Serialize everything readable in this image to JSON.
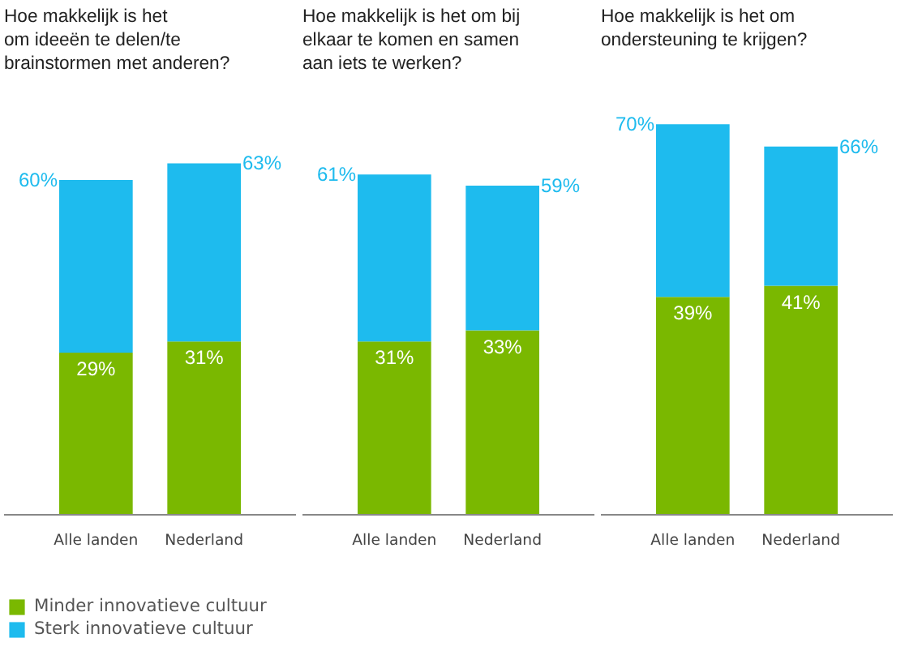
{
  "chart_data": [
    {
      "type": "bar",
      "stacked": true,
      "title": "Hoe makkelijk is het\nom ideeën te delen/te\nbrainstormen met anderen?",
      "categories": [
        "Alle landen",
        "Nederland"
      ],
      "legend": "bottom",
      "totals": [
        "60%",
        "63%"
      ],
      "series": [
        {
          "name": "Minder innovatieve cultuur",
          "color": "#7ab800",
          "values": [
            29,
            31
          ],
          "value_labels": [
            "29%",
            "31%"
          ]
        },
        {
          "name": "Sterk innovatieve cultuur",
          "color": "#1ebbee",
          "values": [
            31,
            32
          ]
        }
      ]
    },
    {
      "type": "bar",
      "stacked": true,
      "title": "Hoe makkelijk is het om bij\nelkaar te komen en samen\naan iets te werken?",
      "categories": [
        "Alle landen",
        "Nederland"
      ],
      "totals": [
        "61%",
        "59%"
      ],
      "series": [
        {
          "color": "#7ab800",
          "values": [
            31,
            33
          ],
          "value_labels": [
            "31%",
            "33%"
          ]
        },
        {
          "color": "#1ebbee",
          "values": [
            30,
            26
          ]
        }
      ]
    },
    {
      "type": "bar",
      "stacked": true,
      "title": "Hoe makkelijk is het om\nondersteuning te krijgen?",
      "categories": [
        "Alle landen",
        "Nederland"
      ],
      "totals": [
        "70%",
        "66%"
      ],
      "series": [
        {
          "color": "#7ab800",
          "values": [
            39,
            41
          ],
          "value_labels": [
            "39%",
            "41%"
          ]
        },
        {
          "color": "#1ebbee",
          "values": [
            31,
            25
          ]
        }
      ]
    }
  ]
}
